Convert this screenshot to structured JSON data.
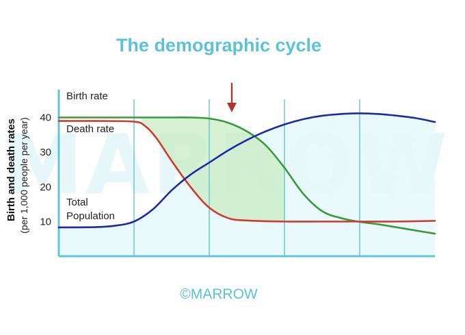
{
  "colors": {
    "title": "#5cc3d6",
    "axis": "#62c5d6",
    "birth": "#3a9a3a",
    "death": "#d03a2e",
    "population": "#1c2aa8",
    "fill_pop": "#e6f8fb",
    "fill_gap": "#c8ecc4",
    "arrow": "#b5332f",
    "watermark": "#e7f6f8",
    "footer": "#5cc3d6"
  },
  "watermark": "MARROW",
  "footer": "©MARROW",
  "chart_data": {
    "type": "line",
    "title": "The demographic cycle",
    "ylabel": "Birth and death rates",
    "ylabel_sub": "(per 1,000 people per year)",
    "xlabel": "",
    "ylim": [
      0,
      48
    ],
    "xlim": [
      0,
      10
    ],
    "yticks": [
      10,
      20,
      30,
      40
    ],
    "stage_boundaries": [
      2,
      4,
      6,
      8
    ],
    "arrow_at_x": 4.6,
    "series": [
      {
        "name": "Birth rate",
        "key": "birth",
        "x": [
          0,
          1,
          2,
          3,
          3.5,
          4,
          4.5,
          5,
          5.5,
          6,
          6.5,
          7,
          7.5,
          8,
          8.5,
          9,
          9.5,
          10
        ],
        "y": [
          40,
          40,
          40,
          40,
          40,
          39.7,
          38.5,
          36,
          32,
          25.5,
          18,
          13,
          11,
          9.9,
          9.2,
          8.3,
          7.4,
          6.5
        ]
      },
      {
        "name": "Death rate",
        "key": "death",
        "x": [
          0,
          1,
          2,
          2.3,
          2.6,
          3,
          3.5,
          4,
          4.5,
          5,
          6,
          7,
          8,
          9,
          10
        ],
        "y": [
          39,
          39,
          38.8,
          37.5,
          34,
          27.5,
          20,
          14,
          11,
          10.3,
          10,
          10,
          10,
          10,
          10.2
        ]
      },
      {
        "name": "Total Population",
        "key": "population",
        "x": [
          0,
          1,
          1.5,
          2,
          2.5,
          3,
          3.5,
          4,
          4.5,
          5,
          5.5,
          6,
          6.5,
          7,
          7.5,
          8,
          8.5,
          9,
          9.5,
          10
        ],
        "y": [
          8.3,
          8.4,
          8.8,
          10,
          13.5,
          19,
          23.5,
          27,
          30.5,
          33.5,
          36,
          38,
          39.5,
          40.5,
          41,
          41.2,
          41,
          40.5,
          39.8,
          38.7
        ]
      }
    ],
    "labels": [
      {
        "key": "birth",
        "lines": [
          "Birth rate"
        ]
      },
      {
        "key": "death",
        "lines": [
          "Death rate"
        ]
      },
      {
        "key": "population",
        "lines": [
          "Total",
          "Population"
        ]
      }
    ]
  }
}
